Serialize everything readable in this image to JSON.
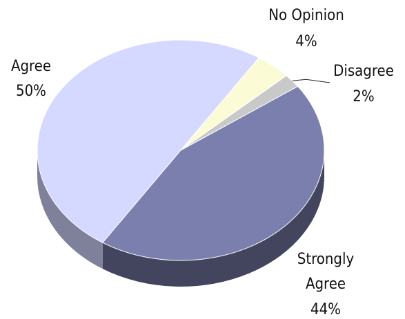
{
  "chart_data": {
    "type": "pie",
    "title": "",
    "slices": [
      {
        "label": "Strongly Agree",
        "value": 44,
        "value_label": "44%",
        "color": "#7a7fad",
        "side_color": "#43455f"
      },
      {
        "label": "Agree",
        "value": 50,
        "value_label": "50%",
        "color": "#d6d9ff",
        "side_color": "#7e8199"
      },
      {
        "label": "No Opinion",
        "value": 4,
        "value_label": "4%",
        "color": "#fbfcd6",
        "side_color": "#c8c9a8"
      },
      {
        "label": "Disagree",
        "value": 2,
        "value_label": "2%",
        "color": "#c9c9c9",
        "side_color": "#8a8a8a"
      }
    ],
    "style": "3d-tilted",
    "legend": "none"
  }
}
